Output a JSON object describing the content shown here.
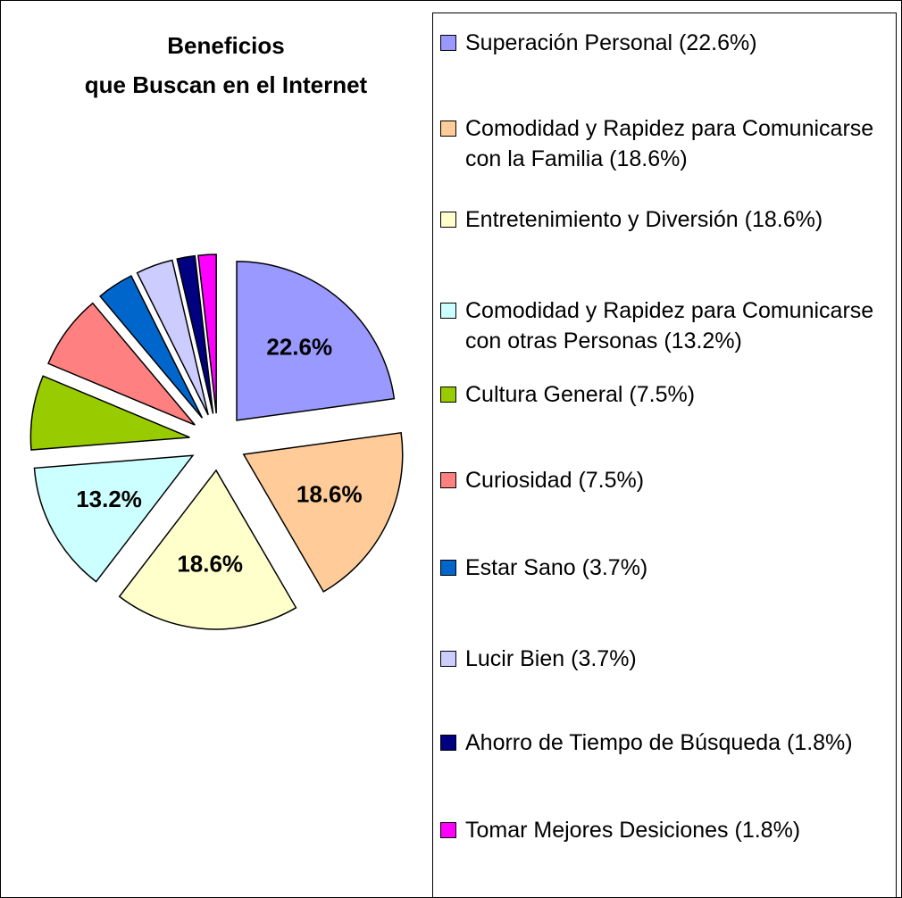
{
  "chart_data": {
    "type": "pie",
    "title": [
      "Beneficios",
      "que Buscan en el Internet"
    ],
    "categories": [
      "Superación Personal (22.6%)",
      "Comodidad y Rapidez para Comunicarse con la Familia (18.6%)",
      "Entretenimiento y Diversión (18.6%)",
      "Comodidad y Rapidez para Comunicarse con otras Personas (13.2%)",
      "Cultura General (7.5%)",
      "Curiosidad (7.5%)",
      "Estar Sano (3.7%)",
      "Lucir Bien (3.7%)",
      "Ahorro de Tiempo de Búsqueda (1.8%)",
      "Tomar Mejores Desiciones (1.8%)"
    ],
    "values": [
      22.6,
      18.6,
      18.6,
      13.2,
      7.5,
      7.5,
      3.7,
      3.7,
      1.8,
      1.8
    ],
    "value_labels": [
      "22.6%",
      "18.6%",
      "18.6%",
      "13.2%",
      null,
      null,
      null,
      null,
      null,
      null
    ],
    "colors": [
      "#9999ff",
      "#ffcc99",
      "#ffffcc",
      "#ccffff",
      "#99cc00",
      "#ff8080",
      "#0066cc",
      "#ccccff",
      "#000080",
      "#ff00ff"
    ],
    "legend": "right"
  }
}
